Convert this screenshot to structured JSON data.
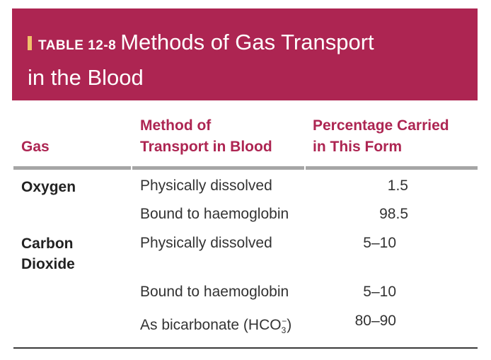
{
  "header": {
    "table_tag": "TABLE 12-8",
    "title_line1": "Methods of Gas Transport",
    "title_line2": "in the Blood"
  },
  "columns": {
    "gas": "Gas",
    "method_line1": "Method of",
    "method_line2": "Transport in Blood",
    "pct_line1": "Percentage Carried",
    "pct_line2": "in This Form"
  },
  "rows": [
    {
      "gas": "Oxygen",
      "method": "Physically dissolved",
      "pct": "1.5"
    },
    {
      "gas": "",
      "method": "Bound to haemoglobin",
      "pct": "98.5"
    },
    {
      "gas_line1": "Carbon",
      "gas_line2": "Dioxide",
      "method": "Physically dissolved",
      "pct": "5–10"
    },
    {
      "gas": "",
      "method": "Bound to haemoglobin",
      "pct": "5–10"
    },
    {
      "gas": "",
      "method_prefix": "As bicarbonate (HCO",
      "method_sub": "3",
      "method_sup": "−",
      "method_suffix": ")",
      "pct": "80–90"
    }
  ],
  "colors": {
    "accent": "#ad2552",
    "icon_bar": "#f0c26b",
    "rule": "#a6a6a6"
  },
  "icons": {
    "title_bar": "title-bar-icon"
  }
}
